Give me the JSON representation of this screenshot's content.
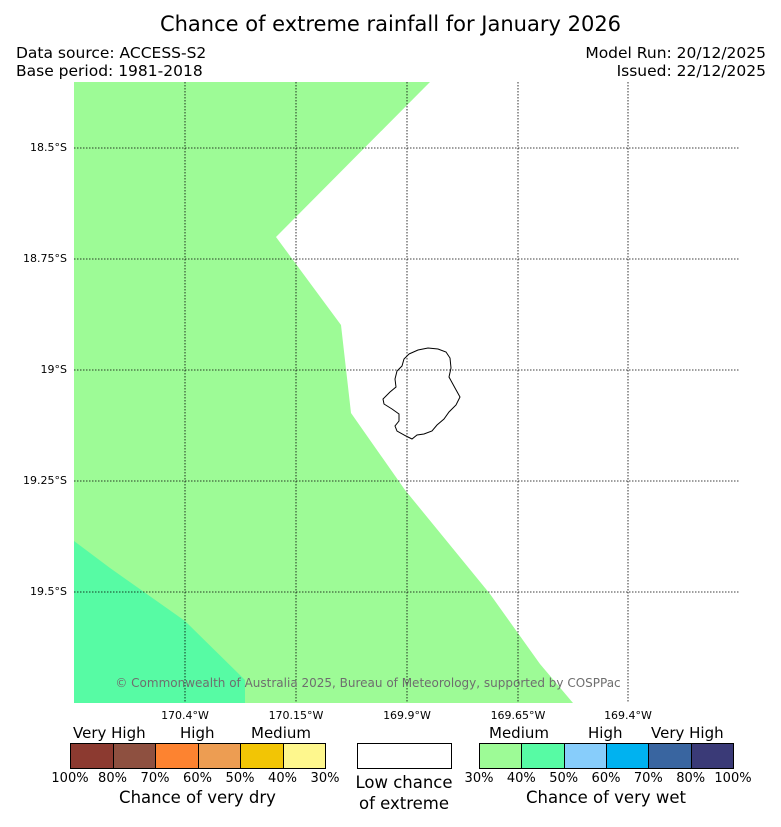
{
  "title": "Chance of extreme rainfall for January 2026",
  "header": {
    "data_source": "Data source: ACCESS-S2",
    "base_period": "Base period: 1981-2018",
    "model_run": "Model Run: 20/12/2025",
    "issued": "Issued: 22/12/2025"
  },
  "map": {
    "lat_labels": [
      "18.5°S",
      "18.75°S",
      "19°S",
      "19.25°S",
      "19.5°S"
    ],
    "lon_labels": [
      "170.4°W",
      "170.15°W",
      "169.9°W",
      "169.65°W",
      "169.4°W"
    ],
    "copyright": "© Commonwealth of Australia 2025, Bureau of Meteorology, supported by COSPPac",
    "colors": {
      "medium_wet": "#9dfb96",
      "medium_high_wet": "#57fba4",
      "land_outline": "#000000",
      "grid": "#000000"
    }
  },
  "legend": {
    "dry": {
      "group_labels": [
        "Very High",
        "High",
        "Medium"
      ],
      "swatches": [
        "#8c3a30",
        "#8e5040",
        "#fd8330",
        "#ed9d52",
        "#f2c505",
        "#fef78d"
      ],
      "pct_labels": [
        "100%",
        "80%",
        "70%",
        "60%",
        "50%",
        "40%",
        "30%"
      ],
      "caption": "Chance of very dry"
    },
    "low": {
      "caption_line1": "Low chance",
      "caption_line2": "of extreme",
      "swatch": "#ffffff"
    },
    "wet": {
      "group_labels": [
        "Medium",
        "High",
        "Very High"
      ],
      "swatches": [
        "#9dfb96",
        "#57fba4",
        "#87cdfb",
        "#00b2f0",
        "#3965a0",
        "#3a3a77"
      ],
      "pct_labels": [
        "30%",
        "40%",
        "50%",
        "60%",
        "70%",
        "80%",
        "100%"
      ],
      "caption": "Chance of very wet"
    }
  }
}
